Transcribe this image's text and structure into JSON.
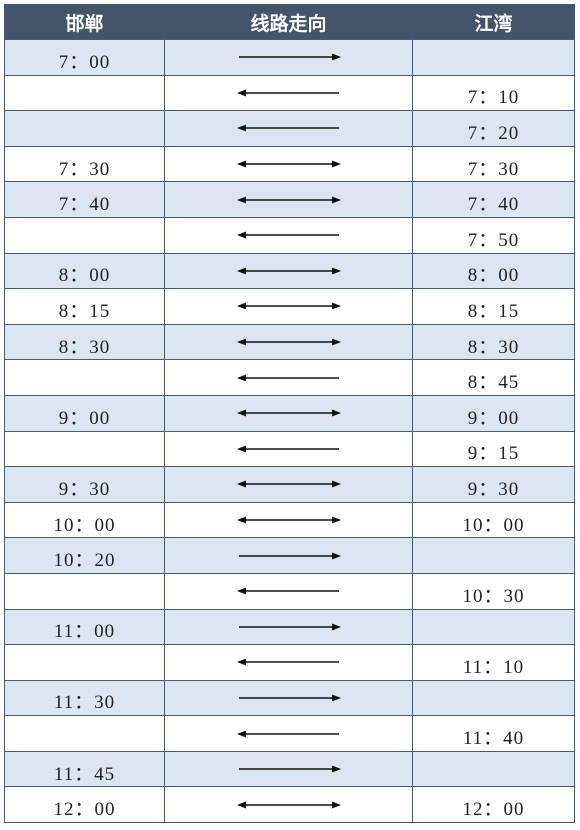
{
  "table": {
    "header": [
      "邯郸",
      "线路走向",
      "江湾"
    ],
    "rows": [
      {
        "from": "7：00",
        "dir": "right",
        "to": null
      },
      {
        "from": null,
        "dir": "left",
        "to": "7：10"
      },
      {
        "from": null,
        "dir": "left",
        "to": "7：20"
      },
      {
        "from": "7：30",
        "dir": "both",
        "to": "7：30"
      },
      {
        "from": "7：40",
        "dir": "both",
        "to": "7：40"
      },
      {
        "from": null,
        "dir": "left",
        "to": "7：50"
      },
      {
        "from": "8：00",
        "dir": "both",
        "to": "8：00"
      },
      {
        "from": "8：15",
        "dir": "both",
        "to": "8：15"
      },
      {
        "from": "8：30",
        "dir": "both",
        "to": "8：30"
      },
      {
        "from": null,
        "dir": "left",
        "to": "8：45"
      },
      {
        "from": "9：00",
        "dir": "both",
        "to": "9：00"
      },
      {
        "from": null,
        "dir": "left",
        "to": "9：15"
      },
      {
        "from": "9：30",
        "dir": "both",
        "to": "9：30"
      },
      {
        "from": "10：00",
        "dir": "both",
        "to": "10：00"
      },
      {
        "from": "10：20",
        "dir": "right",
        "to": null
      },
      {
        "from": null,
        "dir": "left",
        "to": "10：30"
      },
      {
        "from": "11：00",
        "dir": "right",
        "to": null
      },
      {
        "from": null,
        "dir": "left",
        "to": "11：10"
      },
      {
        "from": "11：30",
        "dir": "right",
        "to": null
      },
      {
        "from": null,
        "dir": "left",
        "to": "11：40"
      },
      {
        "from": "11：45",
        "dir": "right",
        "to": null
      },
      {
        "from": "12：00",
        "dir": "both",
        "to": "12：00"
      }
    ]
  }
}
